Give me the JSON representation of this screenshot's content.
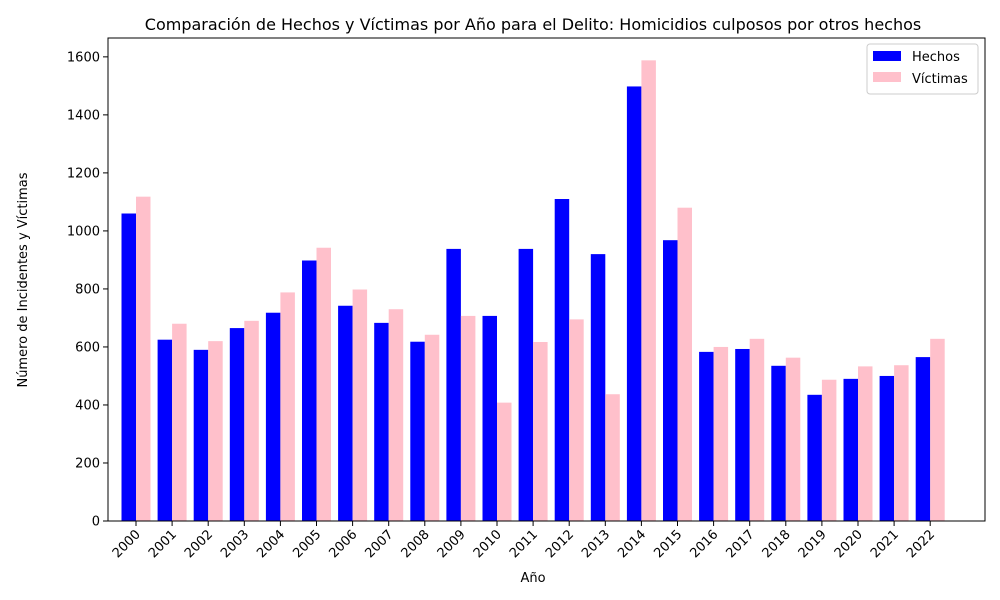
{
  "chart_data": {
    "type": "bar",
    "title": "Comparación de Hechos y Víctimas por Año para el Delito: Homicidios culposos por otros hechos",
    "xlabel": "Año",
    "ylabel": "Número de Incidentes y Víctimas",
    "categories": [
      "2000",
      "2001",
      "2002",
      "2003",
      "2004",
      "2005",
      "2006",
      "2007",
      "2008",
      "2009",
      "2010",
      "2011",
      "2012",
      "2013",
      "2014",
      "2015",
      "2016",
      "2017",
      "2018",
      "2019",
      "2020",
      "2021",
      "2022"
    ],
    "series": [
      {
        "name": "Hechos",
        "color": "#0000ff",
        "values": [
          1060,
          625,
          590,
          665,
          718,
          898,
          742,
          683,
          618,
          938,
          707,
          938,
          1110,
          920,
          1498,
          968,
          583,
          593,
          535,
          435,
          490,
          500,
          565
        ]
      },
      {
        "name": "Víctimas",
        "color": "#ffc0cb",
        "values": [
          1118,
          680,
          620,
          690,
          788,
          942,
          798,
          730,
          642,
          707,
          408,
          617,
          695,
          437,
          1588,
          1080,
          600,
          628,
          563,
          487,
          533,
          537,
          628
        ]
      }
    ],
    "ylim": [
      0,
      1665
    ],
    "yticks": [
      0,
      200,
      400,
      600,
      800,
      1000,
      1200,
      1400,
      1600
    ],
    "grid": false,
    "legend": "top-right"
  }
}
